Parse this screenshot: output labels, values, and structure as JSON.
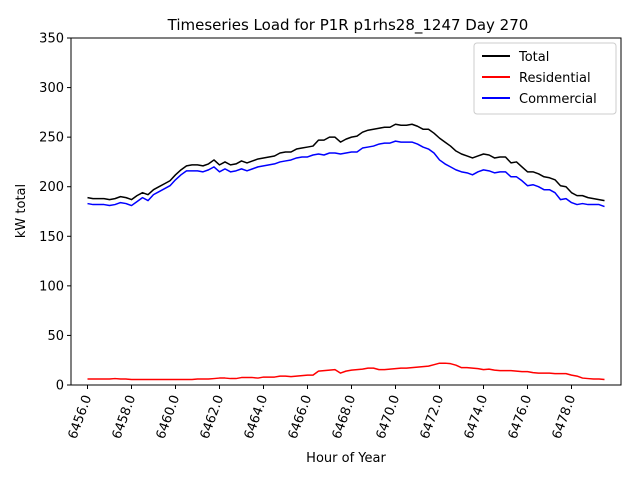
{
  "chart_data": {
    "type": "line",
    "title": "Timeseries Load for P1R p1rhs28_1247  Day 270",
    "xlabel": "Hour of Year",
    "ylabel": "kW total",
    "xlim": [
      6455.25,
      6480.25
    ],
    "ylim": [
      0,
      350
    ],
    "x_tick_values": [
      6456,
      6458,
      6460,
      6462,
      6464,
      6466,
      6468,
      6470,
      6472,
      6474,
      6476,
      6478
    ],
    "x_tick_labels": [
      "6456.0",
      "6458.0",
      "6460.0",
      "6462.0",
      "6464.0",
      "6466.0",
      "6468.0",
      "6470.0",
      "6472.0",
      "6474.0",
      "6476.0",
      "6478.0"
    ],
    "y_tick_values": [
      0,
      50,
      100,
      150,
      200,
      250,
      300,
      350
    ],
    "y_tick_labels": [
      "0",
      "50",
      "100",
      "150",
      "200",
      "250",
      "300",
      "350"
    ],
    "legend_position": "top-right",
    "x": [
      6456.0,
      6456.25,
      6456.5,
      6456.75,
      6457.0,
      6457.25,
      6457.5,
      6457.75,
      6458.0,
      6458.25,
      6458.5,
      6458.75,
      6459.0,
      6459.25,
      6459.5,
      6459.75,
      6460.0,
      6460.25,
      6460.5,
      6460.75,
      6461.0,
      6461.25,
      6461.5,
      6461.75,
      6462.0,
      6462.25,
      6462.5,
      6462.75,
      6463.0,
      6463.25,
      6463.5,
      6463.75,
      6464.0,
      6464.25,
      6464.5,
      6464.75,
      6465.0,
      6465.25,
      6465.5,
      6465.75,
      6466.0,
      6466.25,
      6466.5,
      6466.75,
      6467.0,
      6467.25,
      6467.5,
      6467.75,
      6468.0,
      6468.25,
      6468.5,
      6468.75,
      6469.0,
      6469.25,
      6469.5,
      6469.75,
      6470.0,
      6470.25,
      6470.5,
      6470.75,
      6471.0,
      6471.25,
      6471.5,
      6471.75,
      6472.0,
      6472.25,
      6472.5,
      6472.75,
      6473.0,
      6473.25,
      6473.5,
      6473.75,
      6474.0,
      6474.25,
      6474.5,
      6474.75,
      6475.0,
      6475.25,
      6475.5,
      6475.75,
      6476.0,
      6476.25,
      6476.5,
      6476.75,
      6477.0,
      6477.25,
      6477.5,
      6477.75,
      6478.0,
      6478.25,
      6478.5,
      6478.75,
      6479.0,
      6479.25,
      6479.5
    ],
    "series": [
      {
        "name": "Total",
        "color": "#000000",
        "values": [
          189,
          188,
          188,
          188,
          187,
          188,
          190,
          189,
          187,
          191,
          194,
          192,
          197,
          200,
          203,
          206,
          212,
          217,
          221,
          222,
          222,
          221,
          223,
          227,
          222,
          225,
          222,
          223,
          226,
          224,
          226,
          228,
          229,
          230,
          231,
          234,
          235,
          235,
          238,
          239,
          240,
          241,
          247,
          247,
          250,
          250,
          245,
          248,
          250,
          251,
          255,
          257,
          258,
          259,
          260,
          260,
          263,
          262,
          262,
          263,
          261,
          258,
          258,
          254,
          249,
          245,
          241,
          236,
          233,
          231,
          229,
          231,
          233,
          232,
          229,
          230,
          230,
          224,
          225,
          220,
          215,
          215,
          213,
          210,
          209,
          207,
          201,
          200,
          194,
          191,
          191,
          189,
          188,
          187,
          186
        ]
      },
      {
        "name": "Residential",
        "color": "#ff0000",
        "values": [
          6,
          6,
          6,
          6,
          6,
          6.5,
          6,
          6,
          5.5,
          5.5,
          5.5,
          5.5,
          5.5,
          5.5,
          5.5,
          5.5,
          5.5,
          5.5,
          5.5,
          5.5,
          6,
          6,
          6,
          6.5,
          7,
          7,
          6.5,
          6.5,
          7.5,
          7.5,
          7.5,
          7,
          8,
          8,
          8,
          9,
          9,
          8.5,
          9,
          9.5,
          10,
          10,
          14,
          14.5,
          15,
          15.5,
          12,
          14,
          15,
          15.5,
          16,
          17,
          17,
          15.5,
          15.5,
          16,
          16.5,
          17,
          17,
          17.5,
          18,
          18.5,
          19,
          20.5,
          22,
          22,
          21.5,
          20,
          17.5,
          17.5,
          17,
          16.5,
          15.5,
          16,
          15,
          14.5,
          14.5,
          14.5,
          14,
          13.5,
          13.5,
          12.5,
          12,
          12,
          12,
          11.5,
          11.5,
          11.5,
          10,
          9,
          7,
          6.5,
          6,
          6,
          5.5
        ]
      },
      {
        "name": "Commercial",
        "color": "#0000ff",
        "values": [
          183,
          182,
          182,
          182,
          181,
          182,
          184,
          183,
          181,
          185,
          189,
          186,
          192,
          195,
          198,
          201,
          207,
          212,
          216,
          216,
          216,
          215,
          217,
          220,
          215,
          218,
          215,
          216,
          218,
          216,
          218,
          220,
          221,
          222,
          223,
          225,
          226,
          227,
          229,
          230,
          230,
          232,
          233,
          232,
          234,
          234,
          233,
          234,
          235,
          235,
          239,
          240,
          241,
          243,
          244,
          244,
          246,
          245,
          245,
          245,
          243,
          240,
          238,
          234,
          227,
          223,
          220,
          217,
          215,
          214,
          212,
          215,
          217,
          216,
          214,
          215,
          215,
          210,
          210,
          206,
          201,
          202,
          200,
          197,
          197,
          194,
          187,
          188,
          184,
          182,
          183,
          182,
          182,
          182,
          180
        ]
      }
    ]
  }
}
